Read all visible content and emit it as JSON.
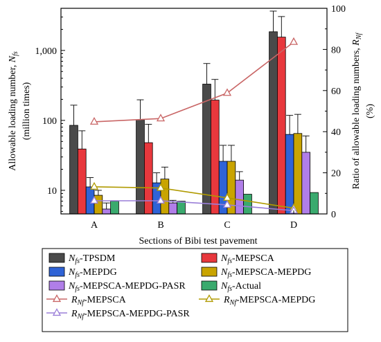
{
  "chart_data": {
    "type": "bar",
    "xlabel": "Sections of Bibi test pavement",
    "ylabel_left_line1": "Allowable loading number, ",
    "ylabel_left_sym": "N",
    "ylabel_left_sub": "fs",
    "ylabel_left_line2": "(million times)",
    "ylabel_right_line1": "Ratio of allowable loading numbers, ",
    "ylabel_right_sym": "R",
    "ylabel_right_sub": "Nf",
    "ylabel_right_line2": "(%)",
    "categories": [
      "A",
      "B",
      "C",
      "D"
    ],
    "y_left": {
      "scale": "log",
      "range": [
        4.6,
        4000
      ],
      "ticks": [
        10,
        100,
        1000
      ],
      "tick_labels": [
        "10",
        "100",
        "1,000"
      ]
    },
    "y_right": {
      "scale": "linear",
      "range": [
        0,
        100
      ],
      "ticks": [
        0,
        20,
        40,
        60,
        80,
        100
      ],
      "tick_labels": [
        "0",
        "20",
        "40",
        "60",
        "80",
        "100"
      ]
    },
    "bar_series": [
      {
        "name_sym": "N",
        "name_sub": "fs",
        "name_rest": "-TPSDM",
        "color": "#4a4a4a",
        "values": [
          85,
          102,
          330,
          1850
        ],
        "errors": [
          80,
          95,
          320,
          1800
        ]
      },
      {
        "name_sym": "N",
        "name_sub": "fs",
        "name_rest": "-MEPSCA",
        "color": "#e8383d",
        "values": [
          39,
          48,
          195,
          1550
        ],
        "errors": [
          32,
          40,
          190,
          1500
        ]
      },
      {
        "name_sym": "N",
        "name_sub": "fs",
        "name_rest": "-MEPDG",
        "color": "#2f63d6",
        "values": [
          11.2,
          12.8,
          26,
          63
        ],
        "errors": [
          4,
          5,
          18,
          55
        ]
      },
      {
        "name_sym": "N",
        "name_sub": "fs",
        "name_rest": "-MEPSCA-MEPDG",
        "color": "#c9a400",
        "values": [
          8.5,
          14.5,
          26,
          65
        ],
        "errors": [
          1.5,
          7,
          18,
          57
        ]
      },
      {
        "name_sym": "N",
        "name_sub": "fs",
        "name_rest": "-MEPSCA-MEPDG-PASR",
        "color": "#b07ee8",
        "values": [
          5.4,
          6.6,
          14,
          35
        ],
        "errors": [
          1.2,
          0.6,
          4.5,
          25
        ]
      },
      {
        "name_sym": "N",
        "name_sub": "fs",
        "name_rest": "-Actual",
        "color": "#3aaa6e",
        "values": [
          7.0,
          7.0,
          8.8,
          9.3
        ],
        "errors": [
          0,
          0,
          0,
          0
        ]
      }
    ],
    "line_series": [
      {
        "name_sym": "R",
        "name_sub": "Nf",
        "name_rest": "-MEPSCA",
        "color": "#c96666",
        "values": [
          44.8,
          46.4,
          58.8,
          83.6
        ]
      },
      {
        "name_sym": "R",
        "name_sub": "Nf",
        "name_rest": "-MEPSCA-MEPDG",
        "color": "#b09a00",
        "values": [
          13.2,
          12.6,
          7.8,
          2.8
        ]
      },
      {
        "name_sym": "R",
        "name_sub": "Nf",
        "name_rest": "-MEPSCA-MEPDG-PASR",
        "color": "#9a7ed8",
        "values": [
          6.4,
          6.4,
          4.4,
          1.6
        ]
      }
    ],
    "legend_placement": "bottom",
    "grid": false
  }
}
